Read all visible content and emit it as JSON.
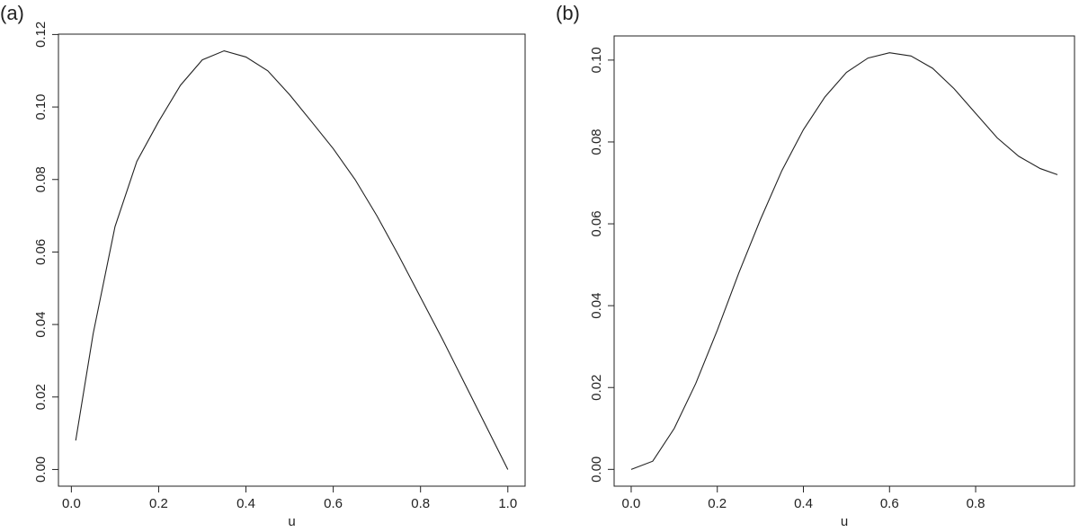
{
  "chart_data": [
    {
      "type": "line",
      "label": "(a)",
      "xlabel": "u",
      "x": [
        0.01,
        0.05,
        0.1,
        0.15,
        0.2,
        0.25,
        0.3,
        0.35,
        0.4,
        0.45,
        0.5,
        0.55,
        0.6,
        0.65,
        0.7,
        0.75,
        0.8,
        0.85,
        0.9,
        0.95,
        1.0
      ],
      "series": [
        {
          "color": "#222222",
          "values": [
            0.008,
            0.0375,
            0.067,
            0.085,
            0.096,
            0.106,
            0.113,
            0.1155,
            0.1138,
            0.11,
            0.1034,
            0.096,
            0.0885,
            0.08,
            0.07,
            0.059,
            0.0475,
            0.036,
            0.024,
            0.012,
            0
          ]
        }
      ],
      "xlim": [
        -0.0296,
        1.0396
      ],
      "ylim": [
        -0.0046,
        0.1201
      ],
      "xticks": [
        {
          "value": 0,
          "label": "0.0"
        },
        0.2,
        0.4,
        0.6,
        0.8,
        {
          "value": 1,
          "label": "1.0"
        }
      ],
      "yticks": [
        {
          "value": 0,
          "label": "0.00"
        },
        0.02,
        0.04,
        0.06,
        0.08,
        {
          "value": 0.1,
          "label": "0.10"
        },
        {
          "value": 0.12,
          "label": "0.12"
        }
      ]
    },
    {
      "type": "line",
      "label": "(b)",
      "xlabel": "u",
      "x": [
        0,
        0.05,
        0.1,
        0.15,
        0.2,
        0.25,
        0.3,
        0.35,
        0.4,
        0.45,
        0.5,
        0.55,
        0.6,
        0.65,
        0.7,
        0.75,
        0.8,
        0.85,
        0.9,
        0.95,
        0.99
      ],
      "series": [
        {
          "color": "#222222",
          "values": [
            0,
            0.002,
            0.01,
            0.021,
            0.034,
            0.048,
            0.061,
            0.073,
            0.083,
            0.091,
            0.097,
            0.1005,
            0.1018,
            0.101,
            0.098,
            0.093,
            0.087,
            0.081,
            0.0765,
            0.0735,
            0.072
          ]
        }
      ],
      "xlim": [
        -0.0396,
        1.0296
      ],
      "ylim": [
        -0.0041,
        0.1059
      ],
      "xticks": [
        {
          "value": 0,
          "label": "0.0"
        },
        0.2,
        0.4,
        0.6,
        0.8
      ],
      "yticks": [
        {
          "value": 0,
          "label": "0.00"
        },
        0.02,
        0.04,
        0.06,
        0.08,
        {
          "value": 0.1,
          "label": "0.10"
        }
      ]
    }
  ]
}
